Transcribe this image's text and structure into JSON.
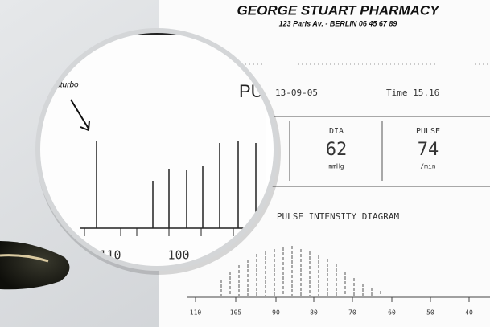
{
  "header": {
    "title": "GEORGE STUART PHARMACY",
    "address": "123  Paris Av. - BERLIN 06 45 67 89"
  },
  "record": {
    "label": "PU",
    "date": "13-09-05",
    "time": "Time 15.16"
  },
  "readings": [
    {
      "label": "DIA",
      "value": "62",
      "unit": "mmHg"
    },
    {
      "label": "PULSE",
      "value": "74",
      "unit": "/min"
    }
  ],
  "diagram": {
    "title": "PULSE INTENSITY DIAGRAM",
    "axis_labels": [
      "110",
      "105",
      "90",
      "80",
      "70",
      "60",
      "50",
      "40"
    ]
  },
  "magnifier": {
    "annotation": "disturbo",
    "axis_labels": [
      "110",
      "100"
    ]
  }
}
